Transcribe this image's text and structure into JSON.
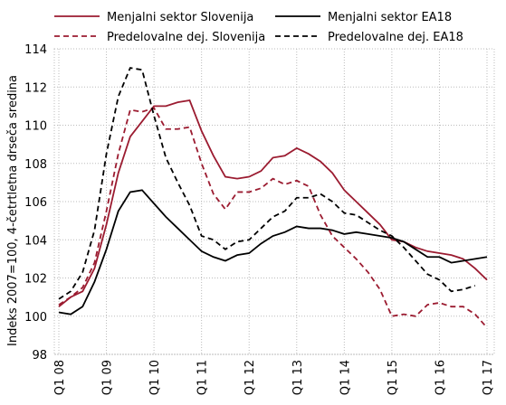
{
  "chart_data": {
    "type": "line",
    "y_label": "Indeks 2007=100, 4-četrtletna drseča sredina",
    "categories": [
      "Q1 08",
      null,
      null,
      null,
      "Q1 09",
      null,
      null,
      null,
      "Q1 10",
      null,
      null,
      null,
      "Q1 11",
      null,
      null,
      null,
      "Q1 12",
      null,
      null,
      null,
      "Q1 13",
      null,
      null,
      null,
      "Q1 14",
      null,
      null,
      null,
      "Q1 15",
      null,
      null,
      null,
      "Q1 16",
      null,
      null,
      null,
      "Q1 17"
    ],
    "series": [
      {
        "name": "Menjalni sektor Slovenija",
        "color": "#9b1b30",
        "dash": false,
        "values": [
          100.5,
          101.0,
          101.3,
          102.5,
          104.8,
          107.5,
          109.4,
          110.2,
          111.0,
          111.0,
          111.2,
          111.3,
          109.7,
          108.4,
          107.3,
          107.2,
          107.3,
          107.6,
          108.3,
          108.4,
          108.8,
          108.5,
          108.1,
          107.5,
          106.6,
          106.0,
          105.4,
          104.8,
          104.0,
          103.9,
          103.6,
          103.4,
          103.3,
          103.2,
          103.0,
          102.5,
          101.9
        ]
      },
      {
        "name": "Menjalni sektor EA18",
        "color": "#000000",
        "dash": false,
        "values": [
          100.2,
          100.1,
          100.5,
          101.8,
          103.5,
          105.5,
          106.5,
          106.6,
          105.9,
          105.2,
          104.6,
          104.0,
          103.4,
          103.1,
          102.9,
          103.2,
          103.3,
          103.8,
          104.2,
          104.4,
          104.7,
          104.6,
          104.6,
          104.5,
          104.3,
          104.4,
          104.3,
          104.2,
          104.1,
          103.9,
          103.5,
          103.1,
          103.1,
          102.8,
          102.9,
          103.0,
          103.1
        ]
      },
      {
        "name": "Predelovalne dej. Slovenija",
        "color": "#9b1b30",
        "dash": true,
        "values": [
          100.6,
          101.0,
          101.5,
          102.8,
          105.5,
          108.5,
          110.8,
          110.7,
          110.9,
          109.8,
          109.8,
          109.9,
          108.0,
          106.4,
          105.6,
          106.5,
          106.5,
          106.7,
          107.2,
          106.9,
          107.1,
          106.8,
          105.3,
          104.2,
          103.6,
          103.0,
          102.3,
          101.4,
          100.0,
          100.1,
          100.0,
          100.6,
          100.7,
          100.5,
          100.5,
          100.1,
          99.4
        ]
      },
      {
        "name": "Predelovalne dej. EA18",
        "color": "#000000",
        "dash": true,
        "values": [
          100.9,
          101.3,
          102.3,
          104.5,
          108.5,
          111.5,
          113.0,
          112.9,
          110.5,
          108.3,
          107.0,
          105.8,
          104.2,
          104.0,
          103.5,
          103.9,
          104.0,
          104.6,
          105.2,
          105.5,
          106.2,
          106.2,
          106.4,
          106.0,
          105.4,
          105.3,
          104.9,
          104.5,
          104.2,
          103.6,
          102.9,
          102.2,
          101.9,
          101.3,
          101.4,
          101.6,
          null
        ]
      }
    ],
    "ylim": [
      98,
      114
    ],
    "yticks": [
      98,
      100,
      102,
      104,
      106,
      108,
      110,
      112,
      114
    ],
    "grid": true
  }
}
